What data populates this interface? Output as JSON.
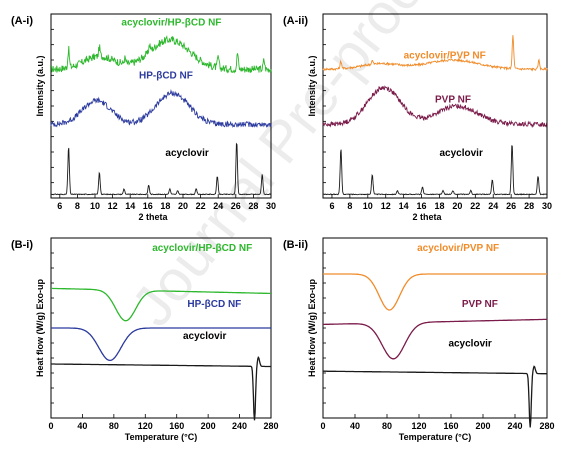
{
  "watermark": "Journal Pre-proof",
  "chart_data": [
    {
      "panel": "(A-i)",
      "type": "line",
      "xlabel": "2 theta",
      "ylabel": "Intensity (a.u.)",
      "xlim": [
        5,
        30
      ],
      "xticks": [
        6,
        8,
        10,
        12,
        14,
        16,
        18,
        20,
        22,
        24,
        26,
        28,
        30
      ],
      "series": [
        {
          "name": "acyclovir/HP-βCD NF",
          "color": "#2db82d",
          "kind": "xrd_amorphous",
          "base": 0.7,
          "humps": [
            [
              10.5,
              0.07,
              2.5
            ],
            [
              18.5,
              0.16,
              3.2
            ]
          ],
          "noise": 0.04,
          "peaks": [
            [
              7.0,
              0.1
            ],
            [
              10.5,
              0.05
            ],
            [
              13.4,
              0.03
            ],
            [
              16.2,
              0.04
            ],
            [
              24.0,
              0.06
            ],
            [
              26.2,
              0.09
            ],
            [
              29.2,
              0.05
            ]
          ]
        },
        {
          "name": "HP-βCD NF",
          "color": "#2b3a9e",
          "kind": "xrd_amorphous",
          "base": 0.4,
          "humps": [
            [
              10.2,
              0.13,
              2.3
            ],
            [
              18.8,
              0.17,
              2.6
            ]
          ],
          "noise": 0.03,
          "peaks": []
        },
        {
          "name": "acyclovir",
          "color": "#1a1a1a",
          "kind": "xrd_crystal",
          "base": 0.02,
          "humps": [],
          "noise": 0.004,
          "peaks": [
            [
              7.0,
              0.26
            ],
            [
              10.5,
              0.12
            ],
            [
              13.3,
              0.03
            ],
            [
              16.1,
              0.05
            ],
            [
              18.5,
              0.03
            ],
            [
              19.4,
              0.02
            ],
            [
              21.5,
              0.03
            ],
            [
              23.9,
              0.1
            ],
            [
              26.1,
              0.29
            ],
            [
              29.0,
              0.11
            ]
          ]
        }
      ]
    },
    {
      "panel": "(A-ii)",
      "type": "line",
      "xlabel": "2 theta",
      "ylabel": "Intensity (a.u.)",
      "xlim": [
        5,
        30
      ],
      "xticks": [
        6,
        8,
        10,
        12,
        14,
        16,
        18,
        20,
        22,
        24,
        26,
        28,
        30
      ],
      "series": [
        {
          "name": "acyclovir/PVP NF",
          "color": "#f08c2a",
          "kind": "xrd_amorphous",
          "base": 0.7,
          "humps": [
            [
              11.5,
              0.03,
              3.0
            ],
            [
              19.5,
              0.05,
              4.0
            ]
          ],
          "noise": 0.012,
          "peaks": [
            [
              7.0,
              0.04
            ],
            [
              10.5,
              0.02
            ],
            [
              26.2,
              0.18
            ],
            [
              29.1,
              0.05
            ]
          ]
        },
        {
          "name": "PVP NF",
          "color": "#7a1b4a",
          "kind": "xrd_amorphous",
          "base": 0.4,
          "humps": [
            [
              11.8,
              0.2,
              2.6
            ],
            [
              20.0,
              0.1,
              3.2
            ]
          ],
          "noise": 0.025,
          "peaks": []
        },
        {
          "name": "acyclovir",
          "color": "#1a1a1a",
          "kind": "xrd_crystal",
          "base": 0.02,
          "humps": [],
          "noise": 0.004,
          "peaks": [
            [
              7.0,
              0.25
            ],
            [
              10.5,
              0.11
            ],
            [
              13.3,
              0.02
            ],
            [
              16.1,
              0.04
            ],
            [
              18.4,
              0.02
            ],
            [
              19.5,
              0.02
            ],
            [
              21.5,
              0.02
            ],
            [
              23.9,
              0.08
            ],
            [
              26.1,
              0.28
            ],
            [
              29.0,
              0.1
            ]
          ]
        }
      ]
    },
    {
      "panel": "(B-i)",
      "type": "line",
      "xlabel": "Temperature (°C)",
      "ylabel": "Heat flow (W/g) Exo-up",
      "xlim": [
        0,
        280
      ],
      "xticks": [
        0,
        40,
        80,
        120,
        160,
        200,
        240,
        280
      ],
      "series": [
        {
          "name": "acyclovir/HP-βCD NF",
          "color": "#2db82d",
          "kind": "dsc",
          "base": 0.72,
          "slope": -0.0001,
          "dips": [
            [
              95,
              0.17,
              18
            ]
          ],
          "sharp": []
        },
        {
          "name": "HP-βCD NF",
          "color": "#2b3a9e",
          "kind": "dsc",
          "base": 0.5,
          "slope": 0.0,
          "dips": [
            [
              75,
              0.18,
              20
            ]
          ],
          "sharp": []
        },
        {
          "name": "acyclovir",
          "color": "#1a1a1a",
          "kind": "dsc",
          "base": 0.3,
          "slope": -5e-05,
          "dips": [],
          "sharp": [
            [
              259,
              0.3,
              1.8
            ],
            [
              264,
              -0.05,
              2.0
            ]
          ]
        }
      ]
    },
    {
      "panel": "(B-ii)",
      "type": "line",
      "xlabel": "Temperature (°C)",
      "ylabel": "Heat flow (W/g) Exo-up",
      "xlim": [
        0,
        280
      ],
      "xticks": [
        0,
        40,
        80,
        120,
        160,
        200,
        240,
        280
      ],
      "series": [
        {
          "name": "acyclovir/PVP NF",
          "color": "#f08c2a",
          "kind": "dsc",
          "base": 0.8,
          "slope": 0.0,
          "dips": [
            [
              83,
              0.2,
              18
            ]
          ],
          "sharp": []
        },
        {
          "name": "PVP NF",
          "color": "#7a1b4a",
          "kind": "dsc",
          "base": 0.52,
          "slope": 0.0001,
          "dips": [
            [
              88,
              0.2,
              20
            ]
          ],
          "sharp": []
        },
        {
          "name": "acyclovir",
          "color": "#1a1a1a",
          "kind": "dsc",
          "base": 0.26,
          "slope": -5e-05,
          "dips": [],
          "sharp": [
            [
              259,
              0.3,
              1.8
            ],
            [
              264,
              -0.04,
              2.0
            ]
          ]
        }
      ]
    }
  ]
}
